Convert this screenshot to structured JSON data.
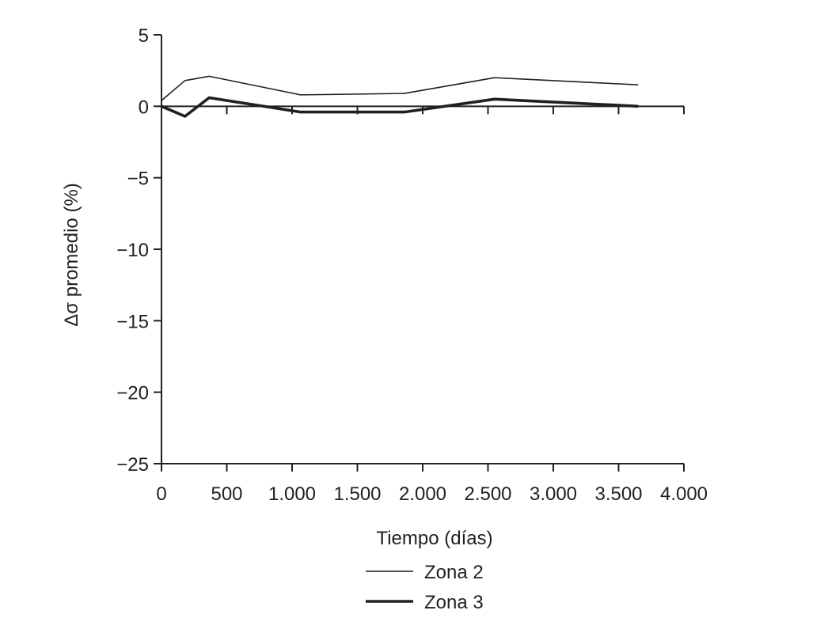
{
  "chart_data": {
    "type": "line",
    "title": "",
    "xlabel": "Tiempo (días)",
    "ylabel": "Δσ promedio (%)",
    "xlim": [
      0,
      4000
    ],
    "ylim": [
      -25,
      5
    ],
    "x_ticks": [
      0,
      500,
      1000,
      1500,
      2000,
      2500,
      3000,
      3500,
      4000
    ],
    "x_tick_labels": [
      "0",
      "500",
      "1.000",
      "1.500",
      "2.000",
      "2.500",
      "3.000",
      "3.500",
      "4.000"
    ],
    "y_ticks": [
      5,
      0,
      -5,
      -10,
      -15,
      -20,
      -25
    ],
    "y_tick_labels": [
      "5",
      "0",
      "−5",
      "−10",
      "−15",
      "−20",
      "−25"
    ],
    "grid": false,
    "legend_position": "bottom",
    "series": [
      {
        "name": "Zona 2",
        "color": "#231f20",
        "line_style": "thin",
        "x": [
          0,
          180,
          365,
          1065,
          1860,
          2550,
          3650
        ],
        "y": [
          0.4,
          1.8,
          2.1,
          0.8,
          0.9,
          2.0,
          1.5
        ]
      },
      {
        "name": "Zona 3",
        "color": "#231f20",
        "line_style": "thick",
        "x": [
          0,
          180,
          365,
          1065,
          1860,
          2550,
          3650
        ],
        "y": [
          0.0,
          -0.7,
          0.6,
          -0.4,
          -0.4,
          0.5,
          0.0
        ]
      }
    ]
  }
}
